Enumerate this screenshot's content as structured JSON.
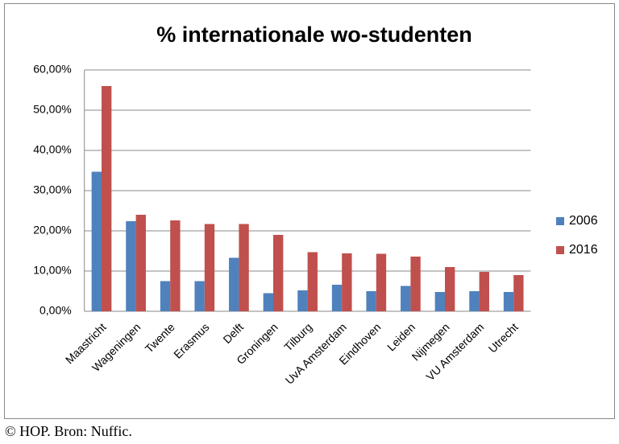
{
  "chart_data": {
    "type": "bar",
    "title": "% internationale wo-studenten",
    "categories": [
      "Maastricht",
      "Wageningen",
      "Twente",
      "Erasmus",
      "Delft",
      "Groningen",
      "Tilburg",
      "UvA Amsterdam",
      "Eindhoven",
      "Leiden",
      "Nijmegen",
      "VU Amsterdam",
      "Utrecht"
    ],
    "series": [
      {
        "name": "2006",
        "color": "#4f81bd",
        "values": [
          34.7,
          22.4,
          7.5,
          7.5,
          13.3,
          4.5,
          5.2,
          6.6,
          5.0,
          6.3,
          4.8,
          5.0,
          4.8
        ]
      },
      {
        "name": "2016",
        "color": "#c0504d",
        "values": [
          56.0,
          24.0,
          22.6,
          21.7,
          21.7,
          19.0,
          14.7,
          14.4,
          14.3,
          13.6,
          11.0,
          9.8,
          9.0
        ]
      }
    ],
    "ylim": [
      0,
      60
    ],
    "yticks": [
      {
        "value": 0,
        "label": "0,00%"
      },
      {
        "value": 10,
        "label": "10,00%"
      },
      {
        "value": 20,
        "label": "20,00%"
      },
      {
        "value": 30,
        "label": "30,00%"
      },
      {
        "value": 40,
        "label": "40,00%"
      },
      {
        "value": 50,
        "label": "50,00%"
      },
      {
        "value": 60,
        "label": "60,00%"
      }
    ],
    "grid": true,
    "legend": "right"
  },
  "caption": "© HOP. Bron: Nuffic."
}
